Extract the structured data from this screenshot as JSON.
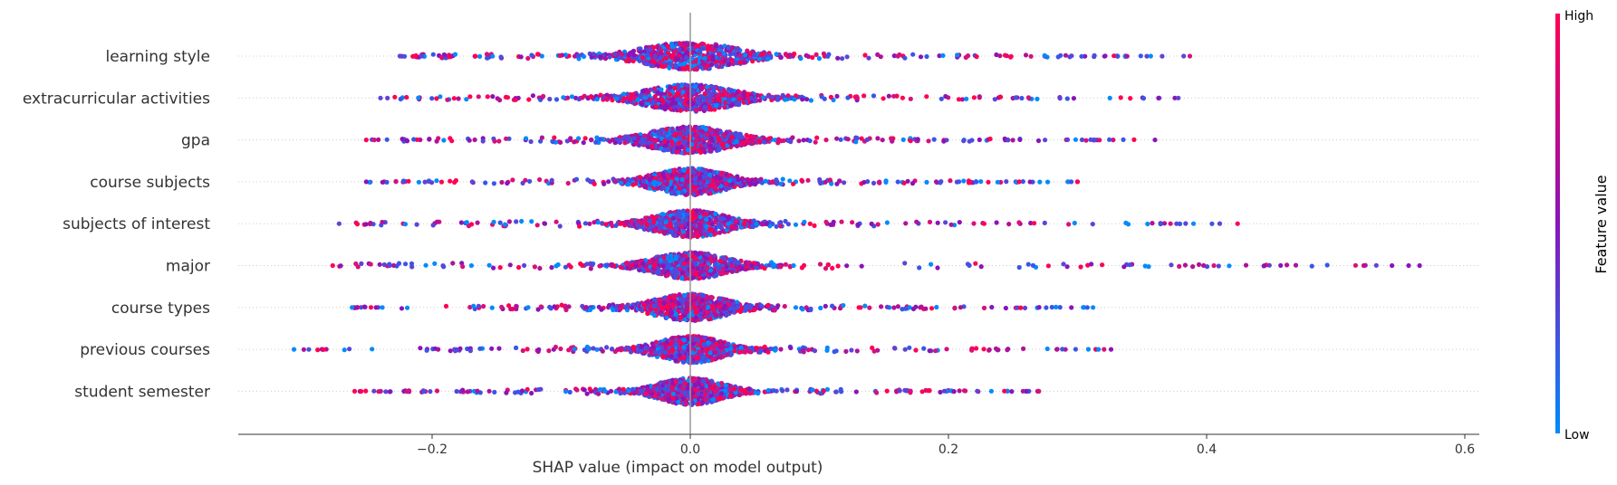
{
  "chart_data": {
    "type": "scatter",
    "subtype": "shap-beeswarm",
    "title": "",
    "xlabel": "SHAP value (impact on model output)",
    "ylabel": "",
    "xlim": [
      -0.35,
      0.61
    ],
    "x_ticks": [
      -0.2,
      0.0,
      0.2,
      0.4,
      0.6
    ],
    "x_tick_labels": [
      "−0.2",
      "0.0",
      "0.2",
      "0.4",
      "0.6"
    ],
    "zero_line": 0.0,
    "grid": false,
    "colorbar": {
      "title": "Feature value",
      "high_label": "High",
      "low_label": "Low",
      "high_color": "#ff0052",
      "mid_color": "#8a14b8",
      "low_color": "#008bfb"
    },
    "features": [
      {
        "name": "learning style",
        "min": -0.225,
        "max": 0.387,
        "core_halfwidth": 0.06
      },
      {
        "name": "extracurricular activities",
        "min": -0.24,
        "max": 0.378,
        "core_halfwidth": 0.055
      },
      {
        "name": "gpa",
        "min": -0.251,
        "max": 0.36,
        "core_halfwidth": 0.05
      },
      {
        "name": "course subjects",
        "min": -0.251,
        "max": 0.3,
        "core_halfwidth": 0.045
      },
      {
        "name": "subjects of interest",
        "min": -0.272,
        "max": 0.424,
        "core_halfwidth": 0.045
      },
      {
        "name": "major",
        "min": -0.277,
        "max": 0.565,
        "core_halfwidth": 0.045
      },
      {
        "name": "course types",
        "min": -0.262,
        "max": 0.312,
        "core_halfwidth": 0.045
      },
      {
        "name": "previous courses",
        "min": -0.307,
        "max": 0.326,
        "core_halfwidth": 0.04
      },
      {
        "name": "student semester",
        "min": -0.26,
        "max": 0.27,
        "core_halfwidth": 0.04
      }
    ]
  }
}
